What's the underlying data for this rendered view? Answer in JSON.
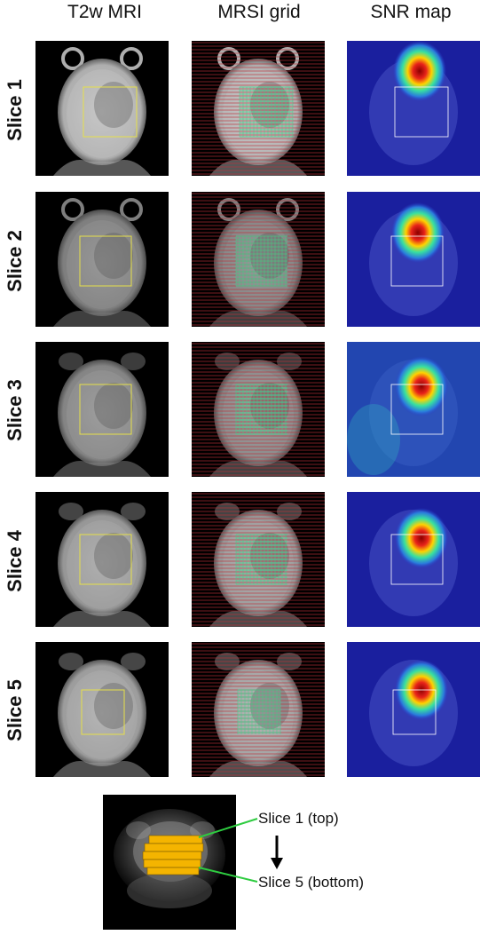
{
  "columns": [
    "T2w MRI",
    "MRSI grid",
    "SNR map"
  ],
  "rows": [
    {
      "label": "Slice 1"
    },
    {
      "label": "Slice 2"
    },
    {
      "label": "Slice 3"
    },
    {
      "label": "Slice 4"
    },
    {
      "label": "Slice 5"
    }
  ],
  "legend": {
    "top_label": "Slice 1 (top)",
    "bottom_label": "Slice 5 (bottom)"
  },
  "colors": {
    "roi_box": "#e6e04a",
    "mrsi_line": "#c0303a",
    "mrsi_voxel": "#3fd28a",
    "slab": "#f4b400",
    "leader_line": "#2ecc40",
    "snr_background": "#1a1f9e"
  }
}
